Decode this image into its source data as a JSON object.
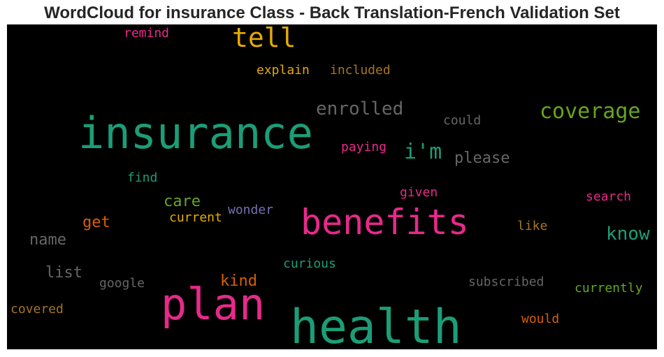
{
  "chart_data": {
    "type": "wordcloud",
    "title": "WordCloud for insurance Class - Back Translation-French Validation Set",
    "background": "#000000",
    "words": [
      {
        "text": "health",
        "color": "#1b9e77"
      },
      {
        "text": "insurance",
        "color": "#1b9e77"
      },
      {
        "text": "plan",
        "color": "#e7298a"
      },
      {
        "text": "benefits",
        "color": "#e7298a"
      },
      {
        "text": "tell",
        "color": "#e6ab02"
      },
      {
        "text": "coverage",
        "color": "#66a61e"
      },
      {
        "text": "i'm",
        "color": "#1b9e77"
      },
      {
        "text": "enrolled",
        "color": "#666666"
      },
      {
        "text": "know",
        "color": "#1b9e77"
      },
      {
        "text": "please",
        "color": "#666666"
      },
      {
        "text": "care",
        "color": "#66a61e"
      },
      {
        "text": "get",
        "color": "#d95f02"
      },
      {
        "text": "name",
        "color": "#666666"
      },
      {
        "text": "list",
        "color": "#666666"
      },
      {
        "text": "kind",
        "color": "#d95f02"
      },
      {
        "text": "explain",
        "color": "#e6ab02"
      },
      {
        "text": "included",
        "color": "#a6761d"
      },
      {
        "text": "remind",
        "color": "#e7298a"
      },
      {
        "text": "could",
        "color": "#666666"
      },
      {
        "text": "paying",
        "color": "#e7298a"
      },
      {
        "text": "find",
        "color": "#1b9e77"
      },
      {
        "text": "given",
        "color": "#e7298a"
      },
      {
        "text": "search",
        "color": "#e7298a"
      },
      {
        "text": "wonder",
        "color": "#7570b3"
      },
      {
        "text": "current",
        "color": "#e6ab02"
      },
      {
        "text": "like",
        "color": "#a6761d"
      },
      {
        "text": "curious",
        "color": "#1b9e77"
      },
      {
        "text": "google",
        "color": "#666666"
      },
      {
        "text": "subscribed",
        "color": "#666666"
      },
      {
        "text": "currently",
        "color": "#66a61e"
      },
      {
        "text": "covered",
        "color": "#a6761d"
      },
      {
        "text": "would",
        "color": "#d95f02"
      }
    ]
  }
}
